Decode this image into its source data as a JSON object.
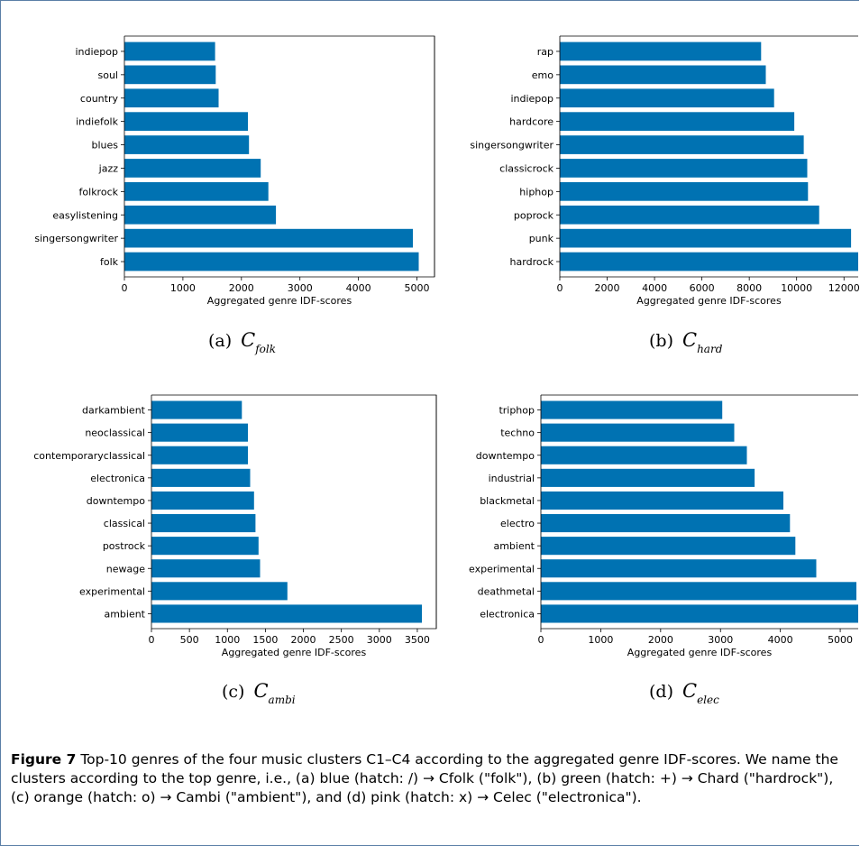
{
  "figure": {
    "label": "Figure 7",
    "caption": "Top-10 genres of the four music clusters C1–C4 according to the aggregated genre IDF-scores. We name the clusters according to the top genre, i.e., (a) blue (hatch: /) → Cfolk (\"folk\"), (b) green (hatch: +) → Chard (\"hardrock\"), (c) orange (hatch: o) → Cambi (\"ambient\"), and (d) pink (hatch: x) → Celec (\"electronica\")."
  },
  "bar_color": "#0072b2",
  "chart_data": [
    {
      "type": "bar",
      "orientation": "horizontal",
      "subcaption_letter": "(a)",
      "subcaption_name": "C",
      "subcaption_sub": "folk",
      "xlabel": "Aggregated genre IDF-scores",
      "categories": [
        "indiepop",
        "soul",
        "country",
        "indiefolk",
        "blues",
        "jazz",
        "folkrock",
        "easylistening",
        "singersongwriter",
        "folk"
      ],
      "values": [
        1550,
        1560,
        1610,
        2110,
        2130,
        2330,
        2460,
        2590,
        4930,
        5030
      ],
      "xlim": [
        0,
        5300
      ],
      "xticks": [
        0,
        1000,
        2000,
        3000,
        4000,
        5000
      ]
    },
    {
      "type": "bar",
      "orientation": "horizontal",
      "subcaption_letter": "(b)",
      "subcaption_name": "C",
      "subcaption_sub": "hard",
      "xlabel": "Aggregated genre IDF-scores",
      "categories": [
        "rap",
        "emo",
        "indiepop",
        "hardcore",
        "singersongwriter",
        "classicrock",
        "hiphop",
        "poprock",
        "punk",
        "hardrock"
      ],
      "values": [
        8500,
        8700,
        9050,
        9900,
        10300,
        10450,
        10480,
        10950,
        12300,
        12600
      ],
      "xlim": [
        0,
        12600
      ],
      "xticks": [
        0,
        2000,
        4000,
        6000,
        8000,
        10000,
        12000
      ]
    },
    {
      "type": "bar",
      "orientation": "horizontal",
      "subcaption_letter": "(c)",
      "subcaption_name": "C",
      "subcaption_sub": "ambi",
      "xlabel": "Aggregated genre IDF-scores",
      "categories": [
        "darkambient",
        "neoclassical",
        "contemporaryclassical",
        "electronica",
        "downtempo",
        "classical",
        "postrock",
        "newage",
        "experimental",
        "ambient"
      ],
      "values": [
        1190,
        1270,
        1270,
        1300,
        1350,
        1370,
        1410,
        1430,
        1790,
        3560
      ],
      "xlim": [
        0,
        3750
      ],
      "xticks": [
        0,
        500,
        1000,
        1500,
        2000,
        2500,
        3000,
        3500
      ]
    },
    {
      "type": "bar",
      "orientation": "horizontal",
      "subcaption_letter": "(d)",
      "subcaption_name": "C",
      "subcaption_sub": "elec",
      "xlabel": "Aggregated genre IDF-scores",
      "categories": [
        "triphop",
        "techno",
        "downtempo",
        "industrial",
        "blackmetal",
        "electro",
        "ambient",
        "experimental",
        "deathmetal",
        "electronica"
      ],
      "values": [
        3030,
        3230,
        3440,
        3570,
        4050,
        4160,
        4250,
        4600,
        5270,
        5300
      ],
      "xlim": [
        0,
        5300
      ],
      "xticks": [
        0,
        1000,
        2000,
        3000,
        4000,
        5000
      ]
    }
  ]
}
